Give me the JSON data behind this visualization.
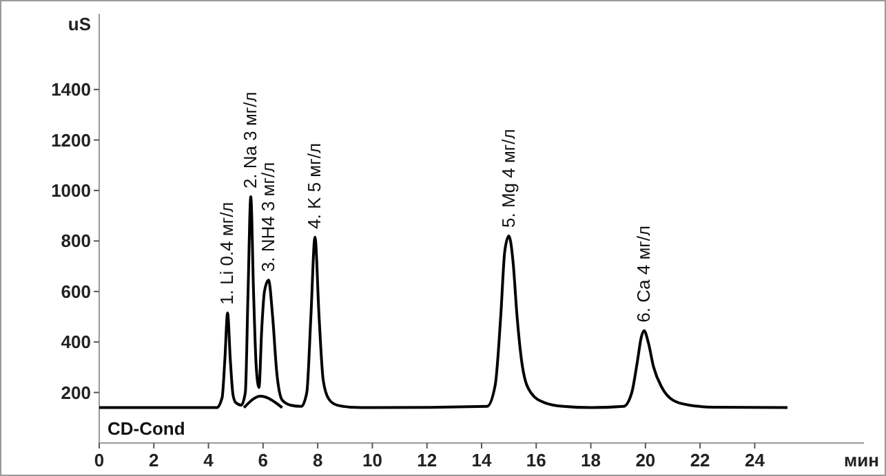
{
  "chart_data": {
    "type": "line",
    "ylabel": "uS",
    "xlabel": "мин",
    "xlim": [
      0,
      28
    ],
    "ylim": [
      0,
      1700
    ],
    "xticks": [
      0,
      2,
      4,
      6,
      8,
      10,
      12,
      14,
      16,
      18,
      20,
      22,
      24
    ],
    "yticks": [
      200,
      400,
      600,
      800,
      1000,
      1200,
      1400
    ],
    "marker": "none",
    "line_style": "solid",
    "series": [
      {
        "color": "#000000",
        "x": [
          0,
          4.3,
          4.5,
          4.6,
          4.7,
          4.8,
          4.9,
          5.0,
          5.2,
          5.35,
          5.45,
          5.55,
          5.65,
          5.75,
          5.85,
          5.95,
          6.05,
          6.2,
          6.35,
          6.5,
          6.7,
          7.0,
          7.4,
          7.6,
          7.75,
          7.9,
          8.05,
          8.2,
          8.4,
          8.7,
          9.2,
          10,
          14.2,
          14.5,
          14.7,
          14.85,
          15.0,
          15.15,
          15.3,
          15.5,
          15.8,
          16.3,
          17,
          18,
          19.2,
          19.5,
          19.7,
          19.85,
          19.95,
          20.1,
          20.3,
          20.6,
          21,
          21.6,
          22.5,
          25.2
        ],
        "values": [
          140,
          140,
          180,
          330,
          515,
          330,
          190,
          160,
          150,
          200,
          600,
          975,
          600,
          300,
          220,
          450,
          600,
          645,
          500,
          280,
          170,
          150,
          145,
          200,
          500,
          815,
          500,
          250,
          175,
          150,
          142,
          140,
          145,
          230,
          500,
          760,
          820,
          720,
          500,
          300,
          200,
          160,
          145,
          140,
          145,
          200,
          320,
          420,
          445,
          400,
          300,
          220,
          170,
          150,
          142,
          140
        ]
      },
      {
        "color": "#000000",
        "x": [
          5.3,
          5.9,
          6.7
        ],
        "values": [
          140,
          185,
          140
        ]
      }
    ],
    "annotations": [
      {
        "text": "1. Li 0.4 мг/л",
        "x": 4.7,
        "y": 515
      },
      {
        "text": "2. Na 3 мг/л",
        "x": 5.55,
        "y": 975
      },
      {
        "text": "3. NH4 3 мг/л",
        "x": 6.2,
        "y": 645
      },
      {
        "text": "4. K 5 мг/л",
        "x": 7.9,
        "y": 815
      },
      {
        "text": "5. Mg 4 мг/л",
        "x": 15.0,
        "y": 820
      },
      {
        "text": "6. Ca 4 мг/л",
        "x": 19.95,
        "y": 445
      },
      "CD-Cond"
    ]
  }
}
